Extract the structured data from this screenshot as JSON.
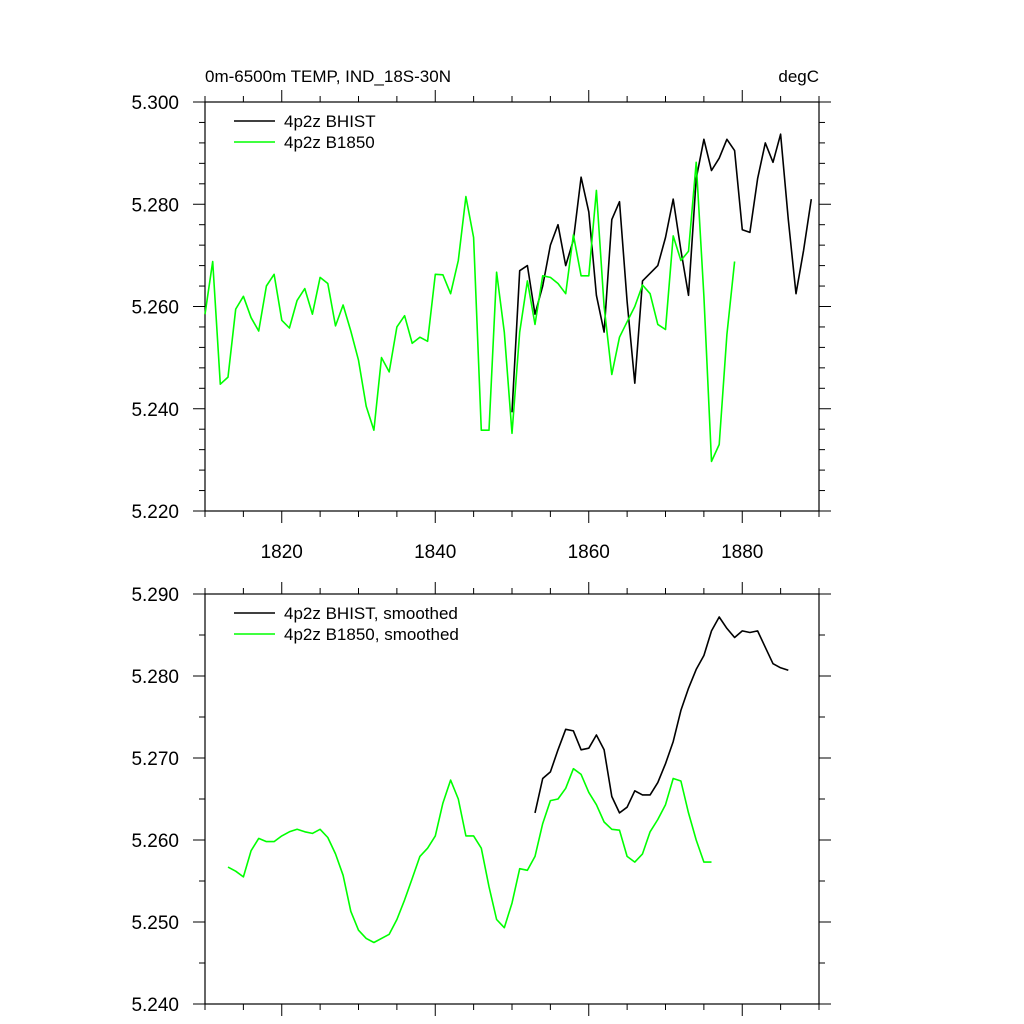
{
  "chart_data": [
    {
      "type": "line",
      "title": "0m-6500m TEMP, IND_18S-30N",
      "units": "degC",
      "xlim": [
        1810,
        1890
      ],
      "ylim": [
        5.22,
        5.3
      ],
      "y_ticks": [
        "5.220",
        "5.240",
        "5.260",
        "5.280",
        "5.300"
      ],
      "x_ticks": [
        "1820",
        "1840",
        "1860",
        "1880"
      ],
      "legend": "top-left",
      "series": [
        {
          "name": "4p2z BHIST",
          "color": "#000000",
          "x": [
            1850,
            1851,
            1852,
            1853,
            1854,
            1855,
            1856,
            1857,
            1858,
            1859,
            1860,
            1861,
            1862,
            1863,
            1864,
            1865,
            1866,
            1867,
            1868,
            1869,
            1870,
            1871,
            1872,
            1873,
            1874,
            1875,
            1876,
            1877,
            1878,
            1879,
            1880,
            1881,
            1882,
            1883,
            1884,
            1885,
            1886,
            1887,
            1888,
            1889
          ],
          "values": [
            5.2393,
            5.267,
            5.268,
            5.2585,
            5.264,
            5.272,
            5.276,
            5.268,
            5.273,
            5.2853,
            5.2785,
            5.2622,
            5.255,
            5.277,
            5.2805,
            5.261,
            5.245,
            5.265,
            5.2665,
            5.268,
            5.2735,
            5.281,
            5.271,
            5.2622,
            5.285,
            5.2927,
            5.2866,
            5.289,
            5.2927,
            5.2905,
            5.275,
            5.2745,
            5.285,
            5.292,
            5.2882,
            5.2937,
            5.277,
            5.2625,
            5.271,
            5.281
          ]
        },
        {
          "name": "4p2z B1850",
          "color": "#00ff00",
          "x": [
            1810,
            1811,
            1812,
            1813,
            1814,
            1815,
            1816,
            1817,
            1818,
            1819,
            1820,
            1821,
            1822,
            1823,
            1824,
            1825,
            1826,
            1827,
            1828,
            1829,
            1830,
            1831,
            1832,
            1833,
            1834,
            1835,
            1836,
            1837,
            1838,
            1839,
            1840,
            1841,
            1842,
            1843,
            1844,
            1845,
            1846,
            1847,
            1848,
            1849,
            1850,
            1851,
            1852,
            1853,
            1854,
            1855,
            1856,
            1857,
            1858,
            1859,
            1860,
            1861,
            1862,
            1863,
            1864,
            1865,
            1866,
            1867,
            1868,
            1869,
            1870,
            1871,
            1872,
            1873,
            1874,
            1875,
            1876,
            1877,
            1878,
            1879
          ],
          "values": [
            5.2585,
            5.2688,
            5.2448,
            5.2462,
            5.2595,
            5.262,
            5.2578,
            5.2552,
            5.264,
            5.2663,
            5.2573,
            5.2558,
            5.2612,
            5.2635,
            5.2585,
            5.2657,
            5.2645,
            5.2562,
            5.2603,
            5.2552,
            5.2495,
            5.2405,
            5.2358,
            5.25,
            5.2472,
            5.256,
            5.2582,
            5.2528,
            5.254,
            5.2532,
            5.2663,
            5.2662,
            5.2625,
            5.269,
            5.2815,
            5.2735,
            5.2358,
            5.2358,
            5.2667,
            5.255,
            5.2352,
            5.255,
            5.265,
            5.2565,
            5.266,
            5.2657,
            5.2645,
            5.2625,
            5.274,
            5.266,
            5.266,
            5.2827,
            5.26,
            5.2467,
            5.254,
            5.257,
            5.26,
            5.2642,
            5.2625,
            5.2565,
            5.2555,
            5.2738,
            5.269,
            5.2708,
            5.2882,
            5.262,
            5.2297,
            5.233,
            5.2545,
            5.2688
          ]
        }
      ]
    },
    {
      "type": "line",
      "title": "",
      "xlim": [
        1810,
        1890
      ],
      "ylim": [
        5.24,
        5.29
      ],
      "y_ticks": [
        "5.240",
        "5.250",
        "5.260",
        "5.270",
        "5.280",
        "5.290"
      ],
      "legend": "top-left",
      "series": [
        {
          "name": "4p2z BHIST, smoothed",
          "color": "#000000",
          "x": [
            1853,
            1854,
            1855,
            1856,
            1857,
            1858,
            1859,
            1860,
            1861,
            1862,
            1863,
            1864,
            1865,
            1866,
            1867,
            1868,
            1869,
            1870,
            1871,
            1872,
            1873,
            1874,
            1875,
            1876,
            1877,
            1878,
            1879,
            1880,
            1881,
            1882,
            1883,
            1884,
            1885,
            1886
          ],
          "values": [
            5.2633,
            5.2675,
            5.2683,
            5.271,
            5.2735,
            5.2733,
            5.271,
            5.2712,
            5.2728,
            5.271,
            5.2653,
            5.2633,
            5.264,
            5.266,
            5.2655,
            5.2655,
            5.267,
            5.2693,
            5.272,
            5.2758,
            5.2785,
            5.2808,
            5.2825,
            5.2855,
            5.2872,
            5.2858,
            5.2847,
            5.2855,
            5.2853,
            5.2855,
            5.2835,
            5.2815,
            5.281,
            5.2807
          ]
        },
        {
          "name": "4p2z B1850, smoothed",
          "color": "#00ff00",
          "x": [
            1813,
            1814,
            1815,
            1816,
            1817,
            1818,
            1819,
            1820,
            1821,
            1822,
            1823,
            1824,
            1825,
            1826,
            1827,
            1828,
            1829,
            1830,
            1831,
            1832,
            1833,
            1834,
            1835,
            1836,
            1837,
            1838,
            1839,
            1840,
            1841,
            1842,
            1843,
            1844,
            1845,
            1846,
            1847,
            1848,
            1849,
            1850,
            1851,
            1852,
            1853,
            1854,
            1855,
            1856,
            1857,
            1858,
            1859,
            1860,
            1861,
            1862,
            1863,
            1864,
            1865,
            1866,
            1867,
            1868,
            1869,
            1870,
            1871,
            1872,
            1873,
            1874,
            1875,
            1876
          ],
          "values": [
            5.2567,
            5.2562,
            5.2555,
            5.2587,
            5.2602,
            5.2598,
            5.2598,
            5.2605,
            5.261,
            5.2613,
            5.261,
            5.2608,
            5.2613,
            5.2603,
            5.2583,
            5.2557,
            5.2513,
            5.249,
            5.248,
            5.2475,
            5.248,
            5.2485,
            5.2503,
            5.2527,
            5.2553,
            5.258,
            5.259,
            5.2605,
            5.2645,
            5.2673,
            5.265,
            5.2605,
            5.2605,
            5.259,
            5.2543,
            5.2503,
            5.2493,
            5.2523,
            5.2565,
            5.2563,
            5.258,
            5.262,
            5.2648,
            5.265,
            5.2663,
            5.2687,
            5.268,
            5.2658,
            5.2643,
            5.2622,
            5.2613,
            5.2612,
            5.258,
            5.2573,
            5.2583,
            5.261,
            5.2625,
            5.2643,
            5.2675,
            5.2672,
            5.2633,
            5.26,
            5.2573,
            5.2573
          ]
        }
      ]
    }
  ]
}
